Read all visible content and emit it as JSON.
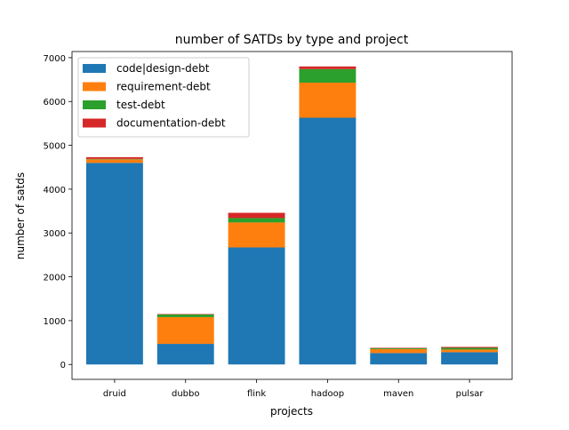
{
  "chart_data": {
    "type": "bar",
    "stacked": true,
    "title": "number of SATDs by type and project",
    "xlabel": "projects",
    "ylabel": "number of satds",
    "categories": [
      "druid",
      "dubbo",
      "flink",
      "hadoop",
      "maven",
      "pulsar"
    ],
    "ylim": [
      -340,
      7140
    ],
    "yticks": [
      0,
      1000,
      2000,
      3000,
      4000,
      5000,
      6000,
      7000
    ],
    "ytick_labels": [
      "0",
      "1000",
      "2000",
      "3000",
      "4000",
      "5000",
      "6000",
      "7000"
    ],
    "grid": false,
    "legend_position": "top-left",
    "series": [
      {
        "name": "code|design-debt",
        "color": "#1f77b4",
        "values": [
          4600,
          470,
          2670,
          5630,
          260,
          280
        ]
      },
      {
        "name": "requirement-debt",
        "color": "#ff7f0e",
        "values": [
          80,
          610,
          570,
          800,
          90,
          60
        ]
      },
      {
        "name": "test-debt",
        "color": "#2ca02c",
        "values": [
          10,
          60,
          100,
          310,
          20,
          40
        ]
      },
      {
        "name": "documentation-debt",
        "color": "#d62728",
        "values": [
          40,
          10,
          120,
          60,
          10,
          20
        ]
      }
    ],
    "draw_order": [
      0,
      1,
      2,
      3
    ]
  }
}
